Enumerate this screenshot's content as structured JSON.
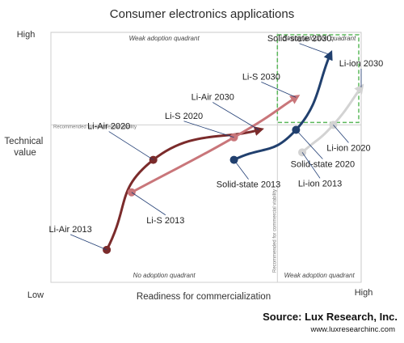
{
  "chart_data": {
    "type": "scatter",
    "title": "Consumer electronics applications",
    "xlabel": "Readiness for commercialization",
    "ylabel": "Technical value",
    "x_ticks": {
      "low": "Low",
      "high": "High"
    },
    "y_ticks": {
      "low": "Low",
      "high": "High"
    },
    "xlim": [
      0,
      10
    ],
    "ylim": [
      0,
      10
    ],
    "thresholds": {
      "x": 7.3,
      "y": 6.3,
      "x_label": "Recommended for commercial viability",
      "y_label": "Recommended for commercial viability"
    },
    "quadrants": {
      "top_left": "Weak adoption quadrant",
      "top_right": "Strong adoption quadrant",
      "bottom_left": "No adoption quadrant",
      "bottom_right": "Weak adoption quadrant"
    },
    "series": [
      {
        "color": "#7b2b2b",
        "points": [
          {
            "label": "Li-Air 2013",
            "x": 1.8,
            "y": 1.3
          },
          {
            "label": "Li-Air 2020",
            "x": 3.3,
            "y": 4.9
          },
          {
            "label": "Li-Air 2030",
            "x": 6.7,
            "y": 6.1
          }
        ]
      },
      {
        "color": "#c9767a",
        "points": [
          {
            "label": "Li-S 2013",
            "x": 2.6,
            "y": 3.6
          },
          {
            "label": "Li-S 2020",
            "x": 5.9,
            "y": 5.8
          },
          {
            "label": "Li-S 2030",
            "x": 7.9,
            "y": 7.4
          }
        ]
      },
      {
        "color": "#21406e",
        "points": [
          {
            "label": "Solid-state 2013",
            "x": 5.9,
            "y": 4.9
          },
          {
            "label": "Solid-state 2020",
            "x": 7.9,
            "y": 6.1
          },
          {
            "label": "Solid-state 2030",
            "x": 9.0,
            "y": 9.1
          }
        ]
      },
      {
        "color": "#d3d3d3",
        "points": [
          {
            "label": "Li-ion 2013",
            "x": 8.1,
            "y": 5.2
          },
          {
            "label": "Li-ion 2020",
            "x": 9.1,
            "y": 6.3
          },
          {
            "label": "Li-ion 2030",
            "x": 10.0,
            "y": 7.8
          }
        ]
      }
    ]
  },
  "source": {
    "text": "Source: Lux Research, Inc.",
    "url": "www.luxresearchinc.com"
  }
}
